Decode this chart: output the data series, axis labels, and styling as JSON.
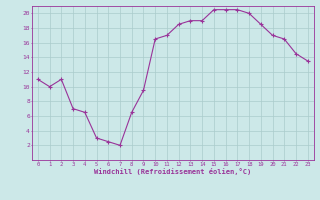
{
  "x": [
    0,
    1,
    2,
    3,
    4,
    5,
    6,
    7,
    8,
    9,
    10,
    11,
    12,
    13,
    14,
    15,
    16,
    17,
    18,
    19,
    20,
    21,
    22,
    23
  ],
  "y": [
    11,
    10,
    11,
    7,
    6.5,
    3,
    2.5,
    2,
    6.5,
    9.5,
    16.5,
    17,
    18.5,
    19,
    19,
    20.5,
    20.5,
    20.5,
    20,
    18.5,
    17,
    16.5,
    14.5,
    13.5
  ],
  "line_color": "#993399",
  "marker_color": "#993399",
  "bg_color": "#cce8e8",
  "grid_color": "#aacccc",
  "xlabel": "Windchill (Refroidissement éolien,°C)",
  "xlabel_color": "#993399",
  "tick_color": "#993399",
  "ylim": [
    0,
    21
  ],
  "yticks": [
    2,
    4,
    6,
    8,
    10,
    12,
    14,
    16,
    18,
    20
  ],
  "xticks": [
    0,
    1,
    2,
    3,
    4,
    5,
    6,
    7,
    8,
    9,
    10,
    11,
    12,
    13,
    14,
    15,
    16,
    17,
    18,
    19,
    20,
    21,
    22,
    23
  ],
  "line_width": 0.8,
  "marker_size": 2.5
}
